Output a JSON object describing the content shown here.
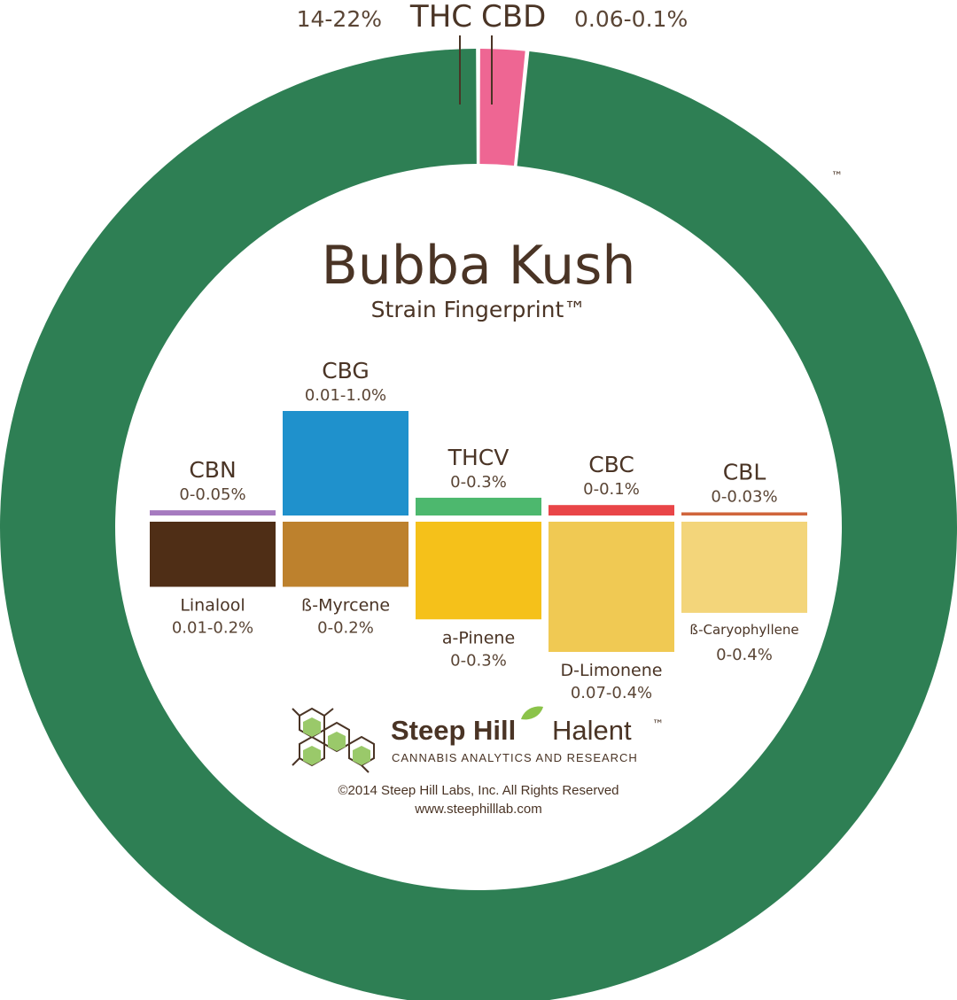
{
  "strain": {
    "title": "Bubba Kush",
    "subtitle": "Strain Fingerprint™"
  },
  "ring": {
    "thc": {
      "name": "THC",
      "range": "14-22%",
      "value": 0.985,
      "color": "#2e7f54"
    },
    "cbd": {
      "name": "CBD",
      "range": "0.06-0.1%",
      "value": 0.015,
      "color": "#ee6693"
    }
  },
  "trademark": "™",
  "chart_data": {
    "type": "bar",
    "cannabinoids": [
      {
        "name": "CBN",
        "range": "0-0.05%",
        "color": "#a67bc0",
        "value": 0.05
      },
      {
        "name": "CBG",
        "range": "0.01-1.0%",
        "color": "#1f91cc",
        "value": 1.0
      },
      {
        "name": "THCV",
        "range": "0-0.3%",
        "color": "#4db86e",
        "value": 0.17
      },
      {
        "name": "CBC",
        "range": "0-0.1%",
        "color": "#e94548",
        "value": 0.1
      },
      {
        "name": "CBL",
        "range": "0-0.03%",
        "color": "#d0653c",
        "value": 0.03
      }
    ],
    "terpenes": [
      {
        "name": "Linalool",
        "range": "0.01-0.2%",
        "color": "#4f2e16",
        "value": 0.2
      },
      {
        "name": "ß-Myrcene",
        "range": "0-0.2%",
        "color": "#bd812d",
        "value": 0.2
      },
      {
        "name": "a-Pinene",
        "range": "0-0.3%",
        "color": "#f5c11a",
        "value": 0.3
      },
      {
        "name": "D-Limonene",
        "range": "0.07-0.4%",
        "color": "#f0c953",
        "value": 0.4
      },
      {
        "name": "ß-Caryophyllene",
        "range": "0-0.4%",
        "color": "#f3d57a",
        "value": 0.28
      }
    ]
  },
  "brand": {
    "name_bold": "Steep Hill",
    "name_light": "Halent",
    "tm": "™",
    "tagline": "CANNABIS ANALYTICS AND RESEARCH",
    "copyright": "©2014 Steep Hill Labs, Inc. All Rights Reserved",
    "url": "www.steephilllab.com"
  }
}
